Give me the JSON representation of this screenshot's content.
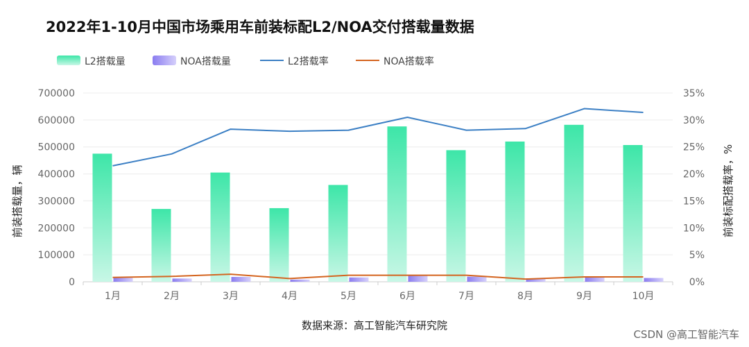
{
  "chart_data": {
    "type": "bar",
    "title": "2022年1-10月中国市场乘用车前装标配L2/NOA交付搭载量数据",
    "categories": [
      "1月",
      "2月",
      "3月",
      "4月",
      "5月",
      "6月",
      "7月",
      "8月",
      "9月",
      "10月"
    ],
    "series": [
      {
        "name": "L2搭载量",
        "kind": "bar",
        "axis": "left",
        "color": "#3de6a8",
        "values": [
          475000,
          270000,
          405000,
          273000,
          359000,
          576000,
          488000,
          520000,
          582000,
          507000
        ]
      },
      {
        "name": "NOA搭载量",
        "kind": "bar",
        "axis": "left",
        "color": "#8a7cf0",
        "values": [
          17000,
          12000,
          18000,
          8000,
          16000,
          22000,
          19000,
          12000,
          18000,
          14000
        ]
      },
      {
        "name": "L2搭载率",
        "kind": "line",
        "axis": "right",
        "color": "#3b7fc4",
        "values": [
          21.5,
          23.7,
          28.3,
          27.9,
          28.1,
          30.5,
          28.1,
          28.4,
          32.1,
          31.4
        ]
      },
      {
        "name": "NOA搭载率",
        "kind": "line",
        "axis": "right",
        "color": "#d4641f",
        "values": [
          0.8,
          1.0,
          1.4,
          0.6,
          1.2,
          1.2,
          1.2,
          0.5,
          0.9,
          0.9
        ]
      }
    ],
    "ylabel": "前装搭载量，辆",
    "y2label": "前装标配搭载率，%",
    "ylim": [
      0,
      700000
    ],
    "y2lim": [
      0,
      35
    ],
    "yticks": [
      "0",
      "100000",
      "200000",
      "300000",
      "400000",
      "500000",
      "600000",
      "700000"
    ],
    "y2ticks": [
      "0%",
      "5%",
      "10%",
      "15%",
      "20%",
      "25%",
      "30%",
      "35%"
    ],
    "grid": true,
    "legend": "top-left"
  },
  "source": "数据来源：高工智能汽车研究院",
  "watermark": "CSDN @高工智能汽车"
}
